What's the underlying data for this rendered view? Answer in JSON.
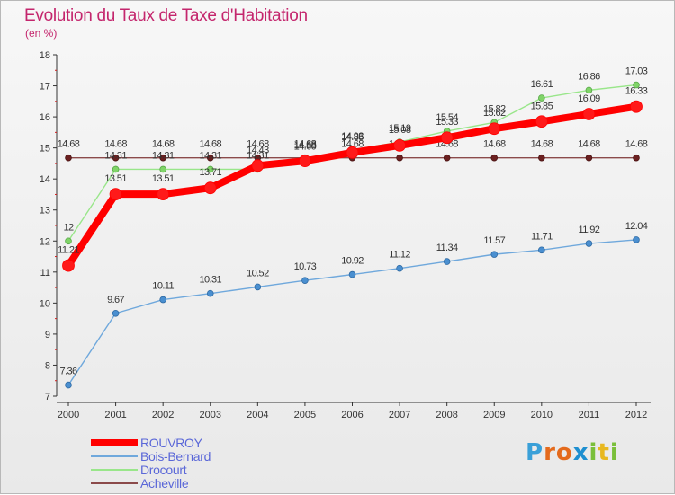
{
  "title": "Evolution du Taux de Taxe d'Habitation",
  "unit": "(en %)",
  "logo": {
    "letters": [
      "P",
      "r",
      "o",
      "x",
      "i",
      "t",
      "i"
    ],
    "letter_colors": [
      "#3aa0d8",
      "#e46a1c",
      "#e46a1c",
      "#1e8fd0",
      "#7abf3a",
      "#e8b820",
      "#7abf3a"
    ]
  },
  "chart_data": {
    "type": "line",
    "title": "Evolution du Taux de Taxe d'Habitation",
    "ylabel": "(en %)",
    "xlabel": "",
    "x": [
      "2000",
      "2001",
      "2002",
      "2003",
      "2004",
      "2005",
      "2006",
      "2007",
      "2008",
      "2009",
      "2010",
      "2011",
      "2012"
    ],
    "ylim": [
      7,
      18
    ],
    "yticks": [
      7,
      8,
      9,
      10,
      11,
      12,
      13,
      14,
      15,
      16,
      17,
      18
    ],
    "grid": false,
    "legend": "bottom-left",
    "series": [
      {
        "name": "ROUVROY",
        "color": "#ff0000",
        "values": [
          11.21,
          13.51,
          13.51,
          13.71,
          14.43,
          14.58,
          14.85,
          15.08,
          15.33,
          15.62,
          15.85,
          16.09,
          16.33
        ],
        "labels": [
          "11.21",
          "13.51",
          "13.51",
          "13.71",
          "14.43",
          "14.58",
          "14.85",
          "15.08",
          "15.33",
          "15.62",
          "15.85",
          "16.09",
          "16.33"
        ]
      },
      {
        "name": "Bois-Bernard",
        "color": "#6fa8dc",
        "values": [
          7.36,
          9.67,
          10.11,
          10.31,
          10.52,
          10.73,
          10.92,
          11.12,
          11.34,
          11.57,
          11.71,
          11.92,
          12.04
        ],
        "labels": [
          "7.36",
          "9.67",
          "10.11",
          "10.31",
          "10.52",
          "10.73",
          "10.92",
          "11.12",
          "11.34",
          "11.57",
          "11.71",
          "11.92",
          "12.04"
        ]
      },
      {
        "name": "Drocourt",
        "color": "#99e68a",
        "values": [
          12,
          14.31,
          14.31,
          14.31,
          14.31,
          14.6,
          14.93,
          15.19,
          15.54,
          15.82,
          16.61,
          16.86,
          17.03
        ],
        "labels": [
          "12",
          "14.31",
          "14.31",
          "14.31",
          "14.31",
          "14.60",
          "14.93",
          "15.19",
          "15.54",
          "15.82",
          "16.61",
          "16.86",
          "17.03"
        ]
      },
      {
        "name": "Acheville",
        "color": "#8b4a4a",
        "values": [
          14.68,
          14.68,
          14.68,
          14.68,
          14.68,
          14.68,
          14.68,
          14.68,
          14.68,
          14.68,
          14.68,
          14.68,
          14.68
        ],
        "labels": [
          "14.68",
          "14.68",
          "14.68",
          "14.68",
          "14.68",
          "14.68",
          "14.68",
          "14.68",
          "14.68",
          "14.68",
          "14.68",
          "14.68",
          "14.68"
        ]
      }
    ]
  }
}
